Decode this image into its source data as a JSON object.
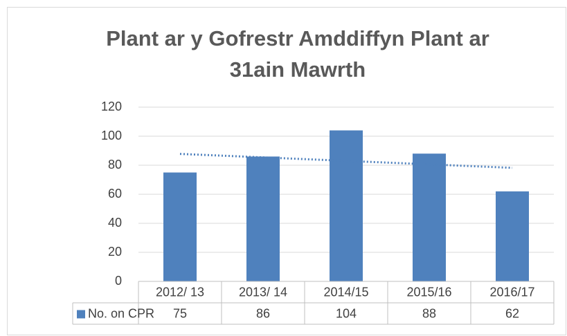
{
  "chart_data": {
    "type": "bar",
    "title": [
      "Plant ar y Gofrestr Amddiffyn Plant ar",
      "31ain Mawrth"
    ],
    "categories": [
      "2012/ 13",
      "2013/ 14",
      "2014/15",
      "2015/16",
      "2016/17"
    ],
    "series": [
      {
        "name": "No. on CPR",
        "color": "#4f81bd",
        "values": [
          75,
          86,
          104,
          88,
          62
        ]
      }
    ],
    "ylim": [
      0,
      120
    ],
    "yticks": [
      0,
      20,
      40,
      60,
      80,
      100,
      120
    ],
    "grid": true,
    "trendline": true,
    "data_table": true
  }
}
